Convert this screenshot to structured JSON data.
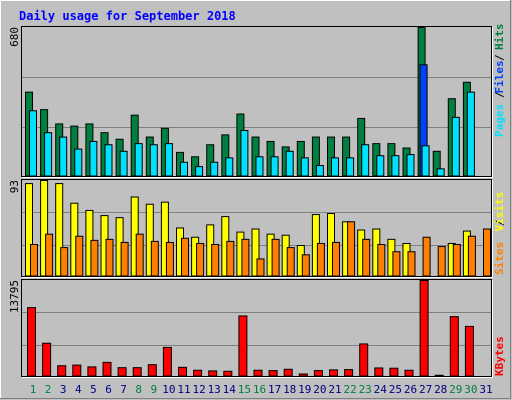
{
  "title": "Daily usage for September 2018",
  "colors": {
    "background": "#c0c0c0",
    "plot_bg": "#c0c0c0",
    "title": "#0000ff",
    "hits": "#008040",
    "files": "#0040ff",
    "pages": "#00e0ff",
    "visits": "#ffff00",
    "sites": "#ff8000",
    "kbytes": "#ff0000",
    "weekend_label": "#008040",
    "weekday_label": "#000080"
  },
  "chart_data": [
    {
      "type": "bar",
      "panel": "top",
      "ymax_label": "680",
      "ymax": 680,
      "legend": [
        "Pages",
        "Files",
        "Hits"
      ],
      "categories": [
        "1",
        "2",
        "3",
        "4",
        "5",
        "6",
        "7",
        "8",
        "9",
        "10",
        "11",
        "12",
        "13",
        "14",
        "15",
        "16",
        "17",
        "18",
        "19",
        "20",
        "21",
        "22",
        "23",
        "24",
        "25",
        "26",
        "27",
        "28",
        "29",
        "30",
        "31"
      ],
      "series": [
        {
          "name": "Hits",
          "values": [
            385,
            305,
            240,
            230,
            240,
            200,
            170,
            280,
            180,
            220,
            110,
            90,
            145,
            190,
            285,
            180,
            160,
            135,
            160,
            180,
            180,
            180,
            265,
            150,
            150,
            130,
            680,
            115,
            355,
            430,
            0
          ]
        },
        {
          "name": "Files",
          "values": [
            0,
            0,
            0,
            0,
            0,
            0,
            0,
            0,
            0,
            0,
            0,
            0,
            0,
            0,
            0,
            0,
            0,
            0,
            0,
            0,
            0,
            0,
            0,
            0,
            0,
            0,
            510,
            0,
            0,
            0,
            0
          ]
        },
        {
          "name": "Pages",
          "values": [
            300,
            200,
            180,
            125,
            160,
            145,
            115,
            150,
            145,
            150,
            65,
            45,
            65,
            85,
            210,
            90,
            90,
            115,
            85,
            50,
            85,
            85,
            145,
            95,
            95,
            100,
            140,
            35,
            270,
            385,
            0
          ]
        }
      ]
    },
    {
      "type": "bar",
      "panel": "middle",
      "ymax_label": "93",
      "ymax": 93,
      "legend": [
        "Sites",
        "Visits"
      ],
      "categories": [
        "1",
        "2",
        "3",
        "4",
        "5",
        "6",
        "7",
        "8",
        "9",
        "10",
        "11",
        "12",
        "13",
        "14",
        "15",
        "16",
        "17",
        "18",
        "19",
        "20",
        "21",
        "22",
        "23",
        "24",
        "25",
        "26",
        "27",
        "28",
        "29",
        "30",
        "31"
      ],
      "series": [
        {
          "name": "Visits",
          "values": [
            90,
            93,
            90,
            71,
            64,
            59,
            57,
            77,
            70,
            72,
            47,
            38,
            50,
            58,
            43,
            46,
            41,
            40,
            30,
            60,
            61,
            53,
            45,
            46,
            36,
            32,
            0,
            0,
            32,
            44,
            0
          ]
        },
        {
          "name": "Sites",
          "values": [
            31,
            41,
            28,
            39,
            35,
            36,
            33,
            41,
            34,
            33,
            37,
            32,
            31,
            34,
            36,
            17,
            36,
            28,
            21,
            32,
            33,
            53,
            36,
            31,
            24,
            24,
            38,
            29,
            31,
            39,
            46
          ]
        }
      ]
    },
    {
      "type": "bar",
      "panel": "bottom",
      "ymax_label": "13795",
      "ymax": 13795,
      "legend": [
        "KBytes"
      ],
      "categories": [
        "1",
        "2",
        "3",
        "4",
        "5",
        "6",
        "7",
        "8",
        "9",
        "10",
        "11",
        "12",
        "13",
        "14",
        "15",
        "16",
        "17",
        "18",
        "19",
        "20",
        "21",
        "22",
        "23",
        "24",
        "25",
        "26",
        "27",
        "28",
        "29",
        "30",
        "31"
      ],
      "series": [
        {
          "name": "KBytes",
          "values": [
            9900,
            4780,
            1550,
            1640,
            1380,
            2030,
            1270,
            1270,
            1700,
            4180,
            1320,
            900,
            800,
            750,
            8700,
            900,
            850,
            1040,
            360,
            850,
            950,
            990,
            4680,
            1230,
            1190,
            900,
            13795,
            180,
            8600,
            7200,
            0
          ]
        }
      ]
    }
  ]
}
